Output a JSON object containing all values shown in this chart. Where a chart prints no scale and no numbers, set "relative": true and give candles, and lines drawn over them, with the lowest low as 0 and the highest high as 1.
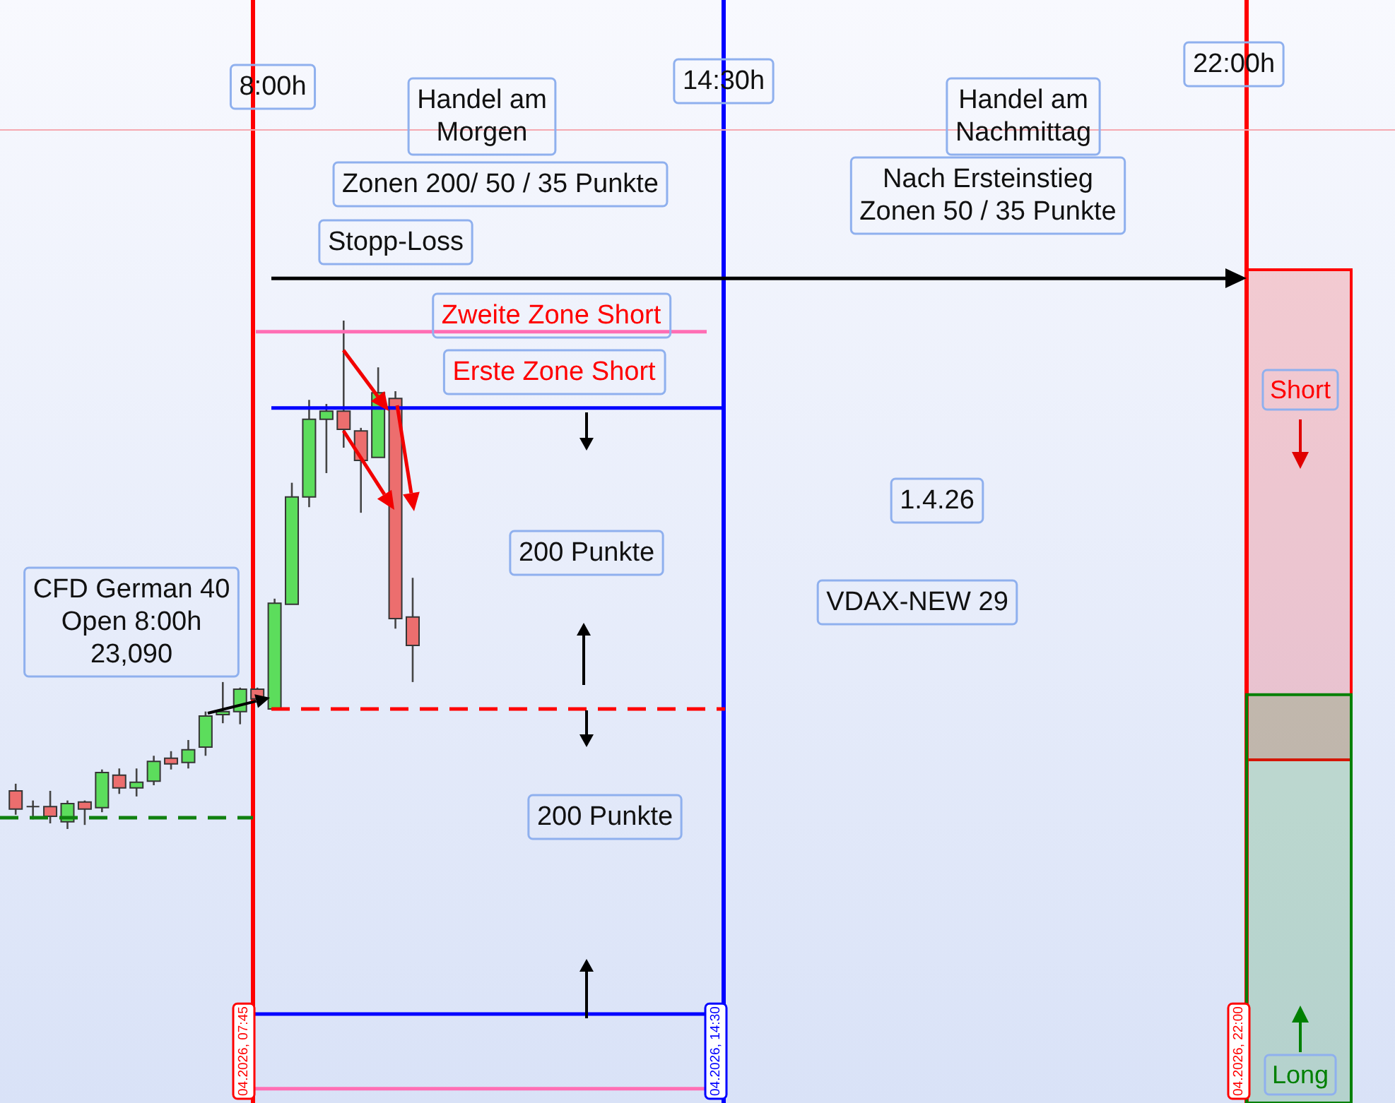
{
  "chart_data": {
    "type": "candlestick",
    "relative": true,
    "categories": [
      null,
      null,
      null,
      null,
      null,
      null,
      null,
      null,
      null,
      null,
      null,
      null,
      null,
      null,
      null,
      null,
      null,
      null,
      null,
      null,
      null,
      null,
      null,
      null,
      null,
      null,
      null,
      null,
      null,
      null,
      null,
      null,
      null,
      null,
      null,
      null,
      null,
      null,
      null,
      null,
      null,
      null,
      null,
      null,
      null,
      null,
      null,
      null,
      null,
      null,
      null,
      null,
      null,
      null,
      null,
      null,
      null,
      null,
      null,
      null,
      null,
      null,
      null,
      null,
      null,
      null,
      null,
      null,
      null,
      null,
      null,
      null,
      null,
      null,
      null,
      null,
      null,
      null,
      null,
      null
    ],
    "ohlc": [
      [
        0.075,
        0.089,
        0.028,
        0.039
      ],
      [
        0.044,
        0.056,
        0.019,
        0.044
      ],
      [
        0.044,
        0.075,
        0.011,
        0.025
      ],
      [
        0.014,
        0.056,
        0,
        0.05
      ],
      [
        0.053,
        0.056,
        0.008,
        0.039
      ],
      [
        0.042,
        0.117,
        0.033,
        0.111
      ],
      [
        0.106,
        0.119,
        0.069,
        0.081
      ],
      [
        0.081,
        0.119,
        0.064,
        0.092
      ],
      [
        0.094,
        0.144,
        0.086,
        0.133
      ],
      [
        0.139,
        0.153,
        0.117,
        0.128
      ],
      [
        0.131,
        0.175,
        0.119,
        0.156
      ],
      [
        0.161,
        0.231,
        0.144,
        0.222
      ],
      [
        0.225,
        0.289,
        0.208,
        0.231
      ],
      [
        0.231,
        0.278,
        0.206,
        0.275
      ],
      [
        0.275,
        0.278,
        0.253,
        0.256
      ],
      [
        0.236,
        0.453,
        0.236,
        0.444
      ],
      [
        0.442,
        0.681,
        0.442,
        0.653
      ],
      [
        0.653,
        0.844,
        0.633,
        0.806
      ],
      [
        0.806,
        0.836,
        0.7,
        0.822
      ],
      [
        0.822,
        1,
        0.75,
        0.786
      ],
      [
        0.783,
        0.789,
        0.622,
        0.725
      ],
      [
        0.731,
        0.908,
        0.731,
        0.858
      ],
      [
        0.847,
        0.861,
        0.394,
        0.414
      ],
      [
        0.417,
        0.494,
        0.289,
        0.361
      ],
      null,
      null,
      null,
      null,
      null,
      null,
      null,
      null,
      null,
      null,
      null,
      null,
      null,
      null,
      null,
      null,
      null,
      null,
      null,
      null,
      null,
      null,
      null,
      null,
      null,
      null,
      null,
      null,
      null,
      null,
      null,
      null,
      null,
      null,
      null,
      null,
      null,
      null,
      null,
      null,
      null,
      null,
      null,
      null,
      null,
      null,
      null,
      null,
      null,
      null,
      null,
      null,
      null,
      null,
      null,
      null
    ],
    "colors": [
      "#ec6e6e",
      "#363636",
      "#ec6e6e",
      "#5cdd5c",
      "#ec6e6e",
      "#5cdd5c",
      "#ec6e6e",
      "#5cdd5c",
      "#5cdd5c",
      "#ec6e6e",
      "#5cdd5c",
      "#5cdd5c",
      "#5cdd5c",
      "#5cdd5c",
      "#ec6e6e",
      "#5cdd5c",
      "#5cdd5c",
      "#5cdd5c",
      "#5cdd5c",
      "#ec6e6e",
      "#ec6e6e",
      "#5cdd5c",
      "#ec6e6e",
      "#ec6e6e",
      null,
      null,
      null,
      null,
      null,
      null,
      null,
      null,
      null,
      null,
      null,
      null,
      null,
      null,
      null,
      null,
      null,
      null,
      null,
      null,
      null,
      null,
      null,
      null,
      null,
      null,
      null,
      null,
      null,
      null,
      null,
      null,
      null,
      null,
      null,
      null,
      null,
      null,
      null,
      null,
      null,
      null,
      null,
      null,
      null,
      null,
      null,
      null,
      null,
      null,
      null,
      null,
      null,
      null,
      null,
      null
    ],
    "ref_lines": [
      {
        "axis": "y",
        "value": 1.375,
        "color": "#f5a9b1"
      },
      {
        "axis": "y",
        "value": 1.083,
        "label": "Stopp-Loss",
        "color": "#000000"
      },
      {
        "axis": "y",
        "value": 0.978,
        "label": "Zweite Zone Short",
        "color": "#ff6eb4"
      },
      {
        "axis": "y",
        "value": 0.828,
        "label": "Erste Zone Short",
        "color": "#0000ff"
      },
      {
        "axis": "y",
        "value": 0.236,
        "color": "#ff0000",
        "line_style": "dashed"
      },
      {
        "axis": "y",
        "value": 0.022,
        "color": "#108010",
        "line_style": "dashed"
      },
      {
        "axis": "y",
        "value": -0.364,
        "color": "#0000ff"
      },
      {
        "axis": "y",
        "value": -0.511,
        "color": "#ff6eb4"
      }
    ],
    "bands": [
      {
        "axis": "y",
        "from": 0.136,
        "to": 1.1,
        "label": "Short",
        "color": "#ff0000"
      },
      {
        "axis": "y",
        "from": -0.539,
        "to": 0.264,
        "label": "Long",
        "color": "#008000"
      }
    ],
    "annotations": [
      "8:00h",
      "Handel am\nMorgen",
      "Zonen 200/ 50 / 35 Punkte",
      "14:30h",
      "Handel am\nNachmittag",
      "Nach Ersteinstieg\nZonen 50 / 35 Punkte",
      "22:00h",
      "200 Punkte",
      "200 Punkte",
      "1.4.26",
      "VDAX-NEW 29",
      "CFD German 40\nOpen 8:00h\n23,090",
      "04.2026, 07:45",
      "04.2026, 14:30",
      "04.2026, 22:00"
    ]
  }
}
